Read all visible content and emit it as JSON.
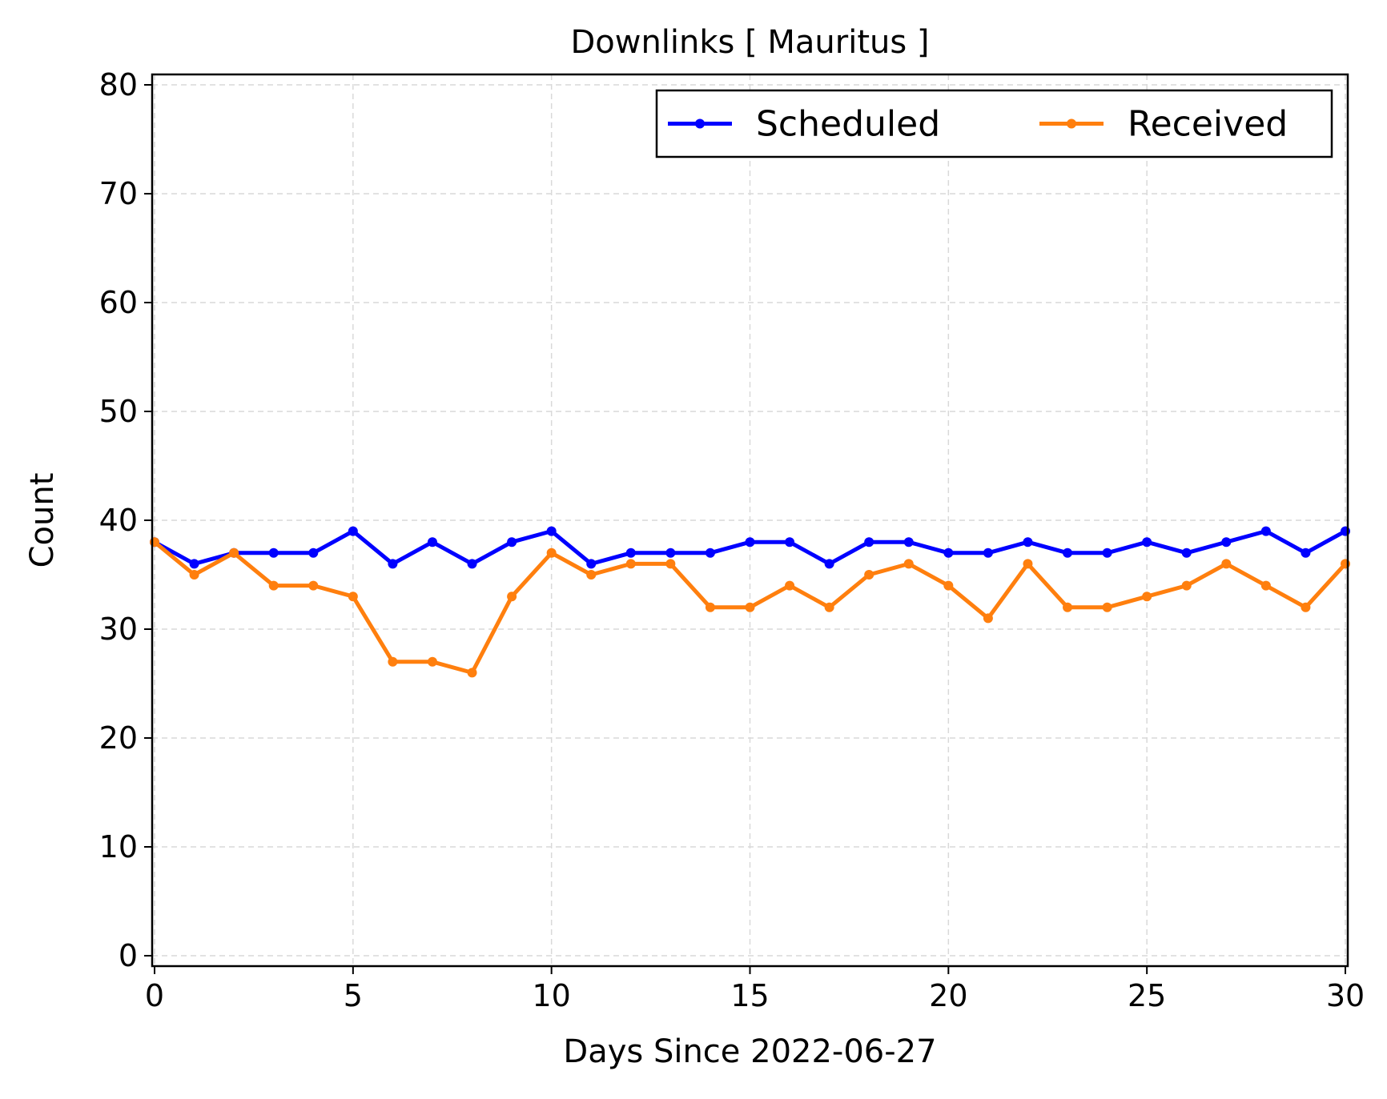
{
  "chart_data": {
    "type": "line",
    "title": "Downlinks [ Mauritus ]",
    "xlabel": "Days Since 2022-06-27",
    "ylabel": "Count",
    "xlim": [
      0,
      30
    ],
    "ylim": [
      0,
      80
    ],
    "x_ticks": [
      0,
      5,
      10,
      15,
      20,
      25,
      30
    ],
    "y_ticks": [
      0,
      10,
      20,
      30,
      40,
      50,
      60,
      70,
      80
    ],
    "grid": true,
    "legend_position": "top-right",
    "x": [
      0,
      1,
      2,
      3,
      4,
      5,
      6,
      7,
      8,
      9,
      10,
      11,
      12,
      13,
      14,
      15,
      16,
      17,
      18,
      19,
      20,
      21,
      22,
      23,
      24,
      25,
      26,
      27,
      28,
      29,
      30
    ],
    "series": [
      {
        "name": "Scheduled",
        "color": "#0000ff",
        "values": [
          38,
          36,
          37,
          37,
          37,
          39,
          36,
          38,
          36,
          38,
          39,
          36,
          37,
          37,
          37,
          38,
          38,
          36,
          38,
          38,
          37,
          37,
          38,
          37,
          37,
          38,
          37,
          38,
          39,
          37,
          39
        ]
      },
      {
        "name": "Received",
        "color": "#ff7f0e",
        "values": [
          38,
          35,
          37,
          34,
          34,
          33,
          27,
          27,
          26,
          33,
          37,
          35,
          36,
          36,
          32,
          32,
          34,
          32,
          35,
          36,
          34,
          31,
          36,
          32,
          32,
          33,
          34,
          36,
          34,
          32,
          36
        ]
      }
    ]
  }
}
